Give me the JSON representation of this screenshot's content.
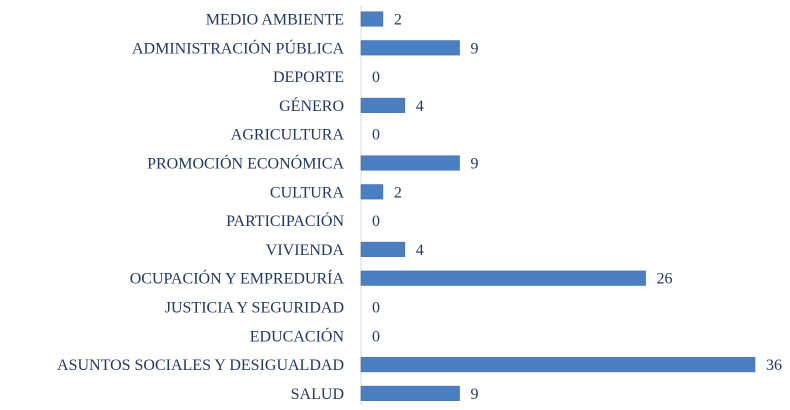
{
  "chart_data": {
    "type": "bar",
    "orientation": "horizontal",
    "title": "",
    "xlabel": "",
    "ylabel": "",
    "grid": false,
    "legend": "none",
    "xlim": [
      0,
      36
    ],
    "bar_color": "#4a7fc1",
    "text_color": "#1f3864",
    "categories": [
      "MEDIO AMBIENTE",
      "ADMINISTRACIÓN PÚBLICA",
      "DEPORTE",
      "GÉNERO",
      "AGRICULTURA",
      "PROMOCIÓN ECONÓMICA",
      "CULTURA",
      "PARTICIPACIÓN",
      "VIVIENDA",
      "OCUPACIÓN Y EMPREDURÍA",
      "JUSTICIA Y SEGURIDAD",
      "EDUCACIÓN",
      "ASUNTOS SOCIALES Y DESIGUALDAD",
      "SALUD"
    ],
    "values": [
      2,
      9,
      0,
      4,
      0,
      9,
      2,
      0,
      4,
      26,
      0,
      0,
      36,
      9
    ]
  }
}
